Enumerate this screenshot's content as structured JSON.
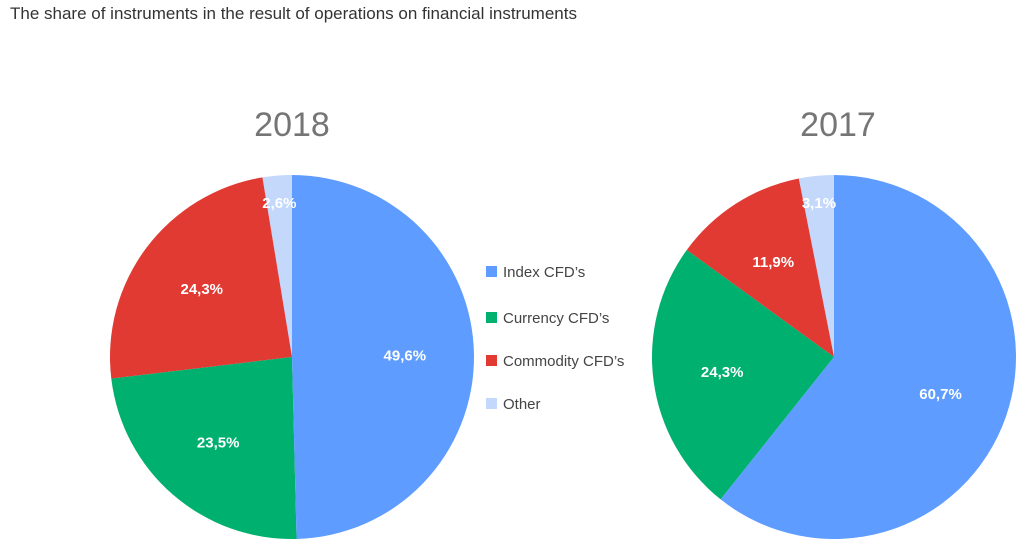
{
  "title": "The share of instruments in the result of operations on financial instruments",
  "chart_data": [
    {
      "type": "pie",
      "title": "2018",
      "categories": [
        "Index CFD’s",
        "Currency CFD’s",
        "Commodity CFD’s",
        "Other"
      ],
      "values": [
        49.6,
        23.5,
        24.3,
        2.6
      ],
      "labels": [
        "49,6%",
        "23,5%",
        "24,3%",
        "2,6%"
      ]
    },
    {
      "type": "pie",
      "title": "2017",
      "categories": [
        "Index CFD’s",
        "Currency CFD’s",
        "Commodity CFD’s",
        "Other"
      ],
      "values": [
        60.7,
        24.3,
        11.9,
        3.1
      ],
      "labels": [
        "60,7%",
        "24,3%",
        "11,9%",
        "3,1%"
      ]
    }
  ],
  "legend": {
    "placement": "center",
    "items": [
      {
        "label": "Index CFD’s",
        "color": "#5e9cff"
      },
      {
        "label": "Currency CFD’s",
        "color": "#00b06f"
      },
      {
        "label": "Commodity CFD’s",
        "color": "#e03a33"
      },
      {
        "label": "Other",
        "color": "#c3d8fb"
      }
    ]
  }
}
